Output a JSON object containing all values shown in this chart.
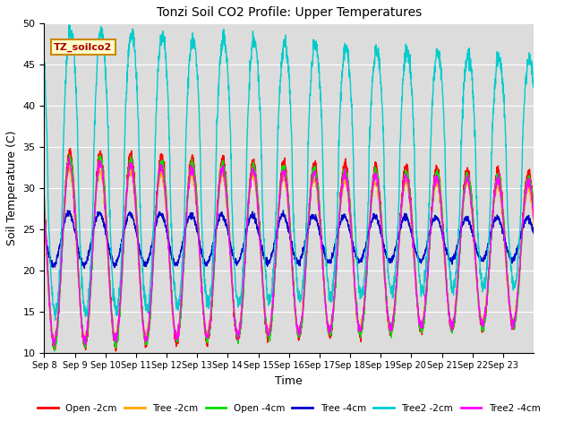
{
  "title": "Tonzi Soil CO2 Profile: Upper Temperatures",
  "xlabel": "Time",
  "ylabel": "Soil Temperature (C)",
  "ylim": [
    10,
    50
  ],
  "background_color": "#dcdcdc",
  "series": [
    {
      "label": "Open -2cm",
      "color": "#ff0000"
    },
    {
      "label": "Tree -2cm",
      "color": "#ffa500"
    },
    {
      "label": "Open -4cm",
      "color": "#00dd00"
    },
    {
      "label": "Tree -4cm",
      "color": "#0000cc"
    },
    {
      "label": "Tree2 -2cm",
      "color": "#00cccc"
    },
    {
      "label": "Tree2 -4cm",
      "color": "#ff00ff"
    }
  ],
  "xtick_labels": [
    "Sep 8",
    "Sep 9",
    "Sep 10",
    "Sep 11",
    "Sep 12",
    "Sep 13",
    "Sep 14",
    "Sep 15",
    "Sep 16",
    "Sep 17",
    "Sep 18",
    "Sep 19",
    "Sep 20",
    "Sep 21",
    "Sep 22",
    "Sep 23"
  ],
  "annotation_text": "TZ_soilco2",
  "grid_color": "white",
  "n_days": 16,
  "lw": 1.0,
  "figsize": [
    6.4,
    4.8
  ],
  "dpi": 100,
  "yticks": [
    10,
    15,
    20,
    25,
    30,
    35,
    40,
    45,
    50
  ]
}
